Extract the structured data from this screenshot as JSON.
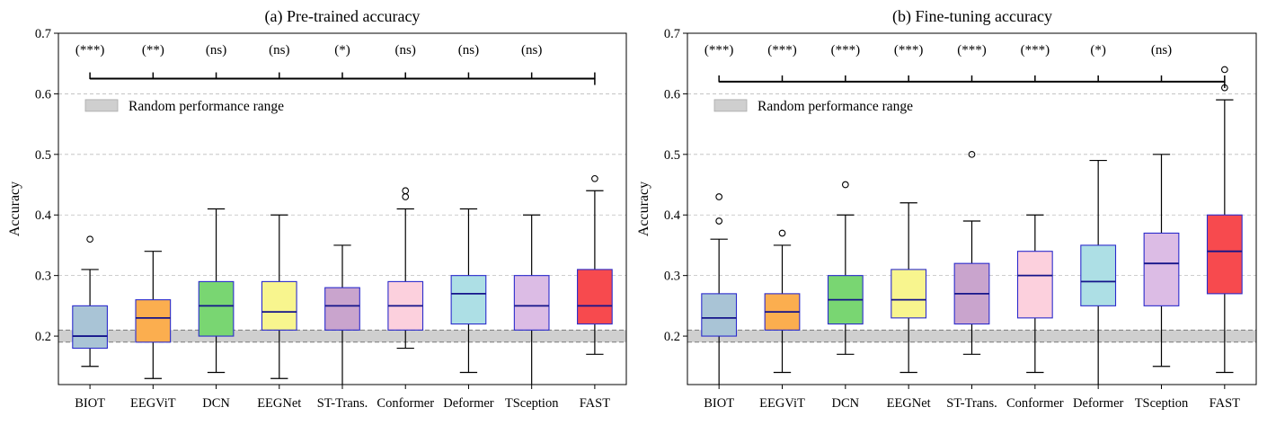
{
  "chart_data": [
    {
      "type": "box",
      "title": "(a) Pre-trained accuracy",
      "xlabel": "",
      "ylabel": "Accuracy",
      "ylim": [
        0.12,
        0.7
      ],
      "yticks": [
        "0.2",
        "0.3",
        "0.4",
        "0.5",
        "0.6",
        "0.7"
      ],
      "ytick_values": [
        0.2,
        0.3,
        0.4,
        0.5,
        0.6,
        0.7
      ],
      "grid": "horizontal dashed",
      "random_range": [
        0.19,
        0.21
      ],
      "legend_label": "Random performance range",
      "legend_position": "upper-left",
      "bracket_y": 0.625,
      "categories": [
        "BIOT",
        "EEGViT",
        "DCN",
        "EEGNet",
        "ST-Trans.",
        "Conformer",
        "Deformer",
        "TSception",
        "FAST"
      ],
      "significance": [
        "(***)",
        "(**)",
        "(ns)",
        "(ns)",
        "(*)",
        "(ns)",
        "(ns)",
        "(ns)"
      ],
      "boxes": [
        {
          "name": "BIOT",
          "color": "#a9c4d6",
          "whislo": 0.15,
          "q1": 0.18,
          "med": 0.2,
          "q3": 0.25,
          "whishi": 0.31,
          "fliers": [
            0.36
          ]
        },
        {
          "name": "EEGViT",
          "color": "#fbae4f",
          "whislo": 0.13,
          "q1": 0.19,
          "med": 0.23,
          "q3": 0.26,
          "whishi": 0.34,
          "fliers": []
        },
        {
          "name": "DCN",
          "color": "#79d672",
          "whislo": 0.14,
          "q1": 0.2,
          "med": 0.25,
          "q3": 0.29,
          "whishi": 0.41,
          "fliers": []
        },
        {
          "name": "EEGNet",
          "color": "#f8f58e",
          "whislo": 0.13,
          "q1": 0.21,
          "med": 0.24,
          "q3": 0.29,
          "whishi": 0.4,
          "fliers": []
        },
        {
          "name": "ST-Trans.",
          "color": "#c9a4cd",
          "whislo": 0.11,
          "q1": 0.21,
          "med": 0.25,
          "q3": 0.28,
          "whishi": 0.35,
          "fliers": []
        },
        {
          "name": "Conformer",
          "color": "#fcd0dd",
          "whislo": 0.18,
          "q1": 0.21,
          "med": 0.25,
          "q3": 0.29,
          "whishi": 0.41,
          "fliers": [
            0.43,
            0.44
          ]
        },
        {
          "name": "Deformer",
          "color": "#addfe5",
          "whislo": 0.14,
          "q1": 0.22,
          "med": 0.27,
          "q3": 0.3,
          "whishi": 0.41,
          "fliers": []
        },
        {
          "name": "TSception",
          "color": "#dcbce5",
          "whislo": 0.11,
          "q1": 0.21,
          "med": 0.25,
          "q3": 0.3,
          "whishi": 0.4,
          "fliers": []
        },
        {
          "name": "FAST",
          "color": "#f74a4e",
          "whislo": 0.17,
          "q1": 0.22,
          "med": 0.25,
          "q3": 0.31,
          "whishi": 0.44,
          "fliers": [
            0.46
          ]
        }
      ]
    },
    {
      "type": "box",
      "title": "(b) Fine-tuning accuracy",
      "xlabel": "",
      "ylabel": "Accuracy",
      "ylim": [
        0.12,
        0.7
      ],
      "yticks": [
        "0.2",
        "0.3",
        "0.4",
        "0.5",
        "0.6",
        "0.7"
      ],
      "ytick_values": [
        0.2,
        0.3,
        0.4,
        0.5,
        0.6,
        0.7
      ],
      "grid": "horizontal dashed",
      "random_range": [
        0.19,
        0.21
      ],
      "legend_label": "Random performance range",
      "legend_position": "upper-left",
      "bracket_y": 0.62,
      "categories": [
        "BIOT",
        "EEGViT",
        "DCN",
        "EEGNet",
        "ST-Trans.",
        "Conformer",
        "Deformer",
        "TSception",
        "FAST"
      ],
      "significance": [
        "(***)",
        "(***)",
        "(***)",
        "(***)",
        "(***)",
        "(***)",
        "(*)",
        "(ns)"
      ],
      "boxes": [
        {
          "name": "BIOT",
          "color": "#a9c4d6",
          "whislo": 0.11,
          "q1": 0.2,
          "med": 0.23,
          "q3": 0.27,
          "whishi": 0.36,
          "fliers": [
            0.39,
            0.43
          ]
        },
        {
          "name": "EEGViT",
          "color": "#fbae4f",
          "whislo": 0.14,
          "q1": 0.21,
          "med": 0.24,
          "q3": 0.27,
          "whishi": 0.35,
          "fliers": [
            0.37
          ]
        },
        {
          "name": "DCN",
          "color": "#79d672",
          "whislo": 0.17,
          "q1": 0.22,
          "med": 0.26,
          "q3": 0.3,
          "whishi": 0.4,
          "fliers": [
            0.45
          ]
        },
        {
          "name": "EEGNet",
          "color": "#f8f58e",
          "whislo": 0.14,
          "q1": 0.23,
          "med": 0.26,
          "q3": 0.31,
          "whishi": 0.42,
          "fliers": []
        },
        {
          "name": "ST-Trans.",
          "color": "#c9a4cd",
          "whislo": 0.17,
          "q1": 0.22,
          "med": 0.27,
          "q3": 0.32,
          "whishi": 0.39,
          "fliers": [
            0.5
          ]
        },
        {
          "name": "Conformer",
          "color": "#fcd0dd",
          "whislo": 0.14,
          "q1": 0.23,
          "med": 0.3,
          "q3": 0.34,
          "whishi": 0.4,
          "fliers": []
        },
        {
          "name": "Deformer",
          "color": "#addfe5",
          "whislo": 0.11,
          "q1": 0.25,
          "med": 0.29,
          "q3": 0.35,
          "whishi": 0.49,
          "fliers": []
        },
        {
          "name": "TSception",
          "color": "#dcbce5",
          "whislo": 0.15,
          "q1": 0.25,
          "med": 0.32,
          "q3": 0.37,
          "whishi": 0.5,
          "fliers": []
        },
        {
          "name": "FAST",
          "color": "#f74a4e",
          "whislo": 0.14,
          "q1": 0.27,
          "med": 0.34,
          "q3": 0.4,
          "whishi": 0.59,
          "fliers": [
            0.61,
            0.64
          ]
        }
      ]
    }
  ],
  "colors": {
    "box_edge": "#2b2bcc",
    "median": "#14148a",
    "grid": "#bdbdbd",
    "random_band": "#cfcfcf",
    "random_band_edge": "#7a7a7a",
    "axes": "#000000"
  }
}
